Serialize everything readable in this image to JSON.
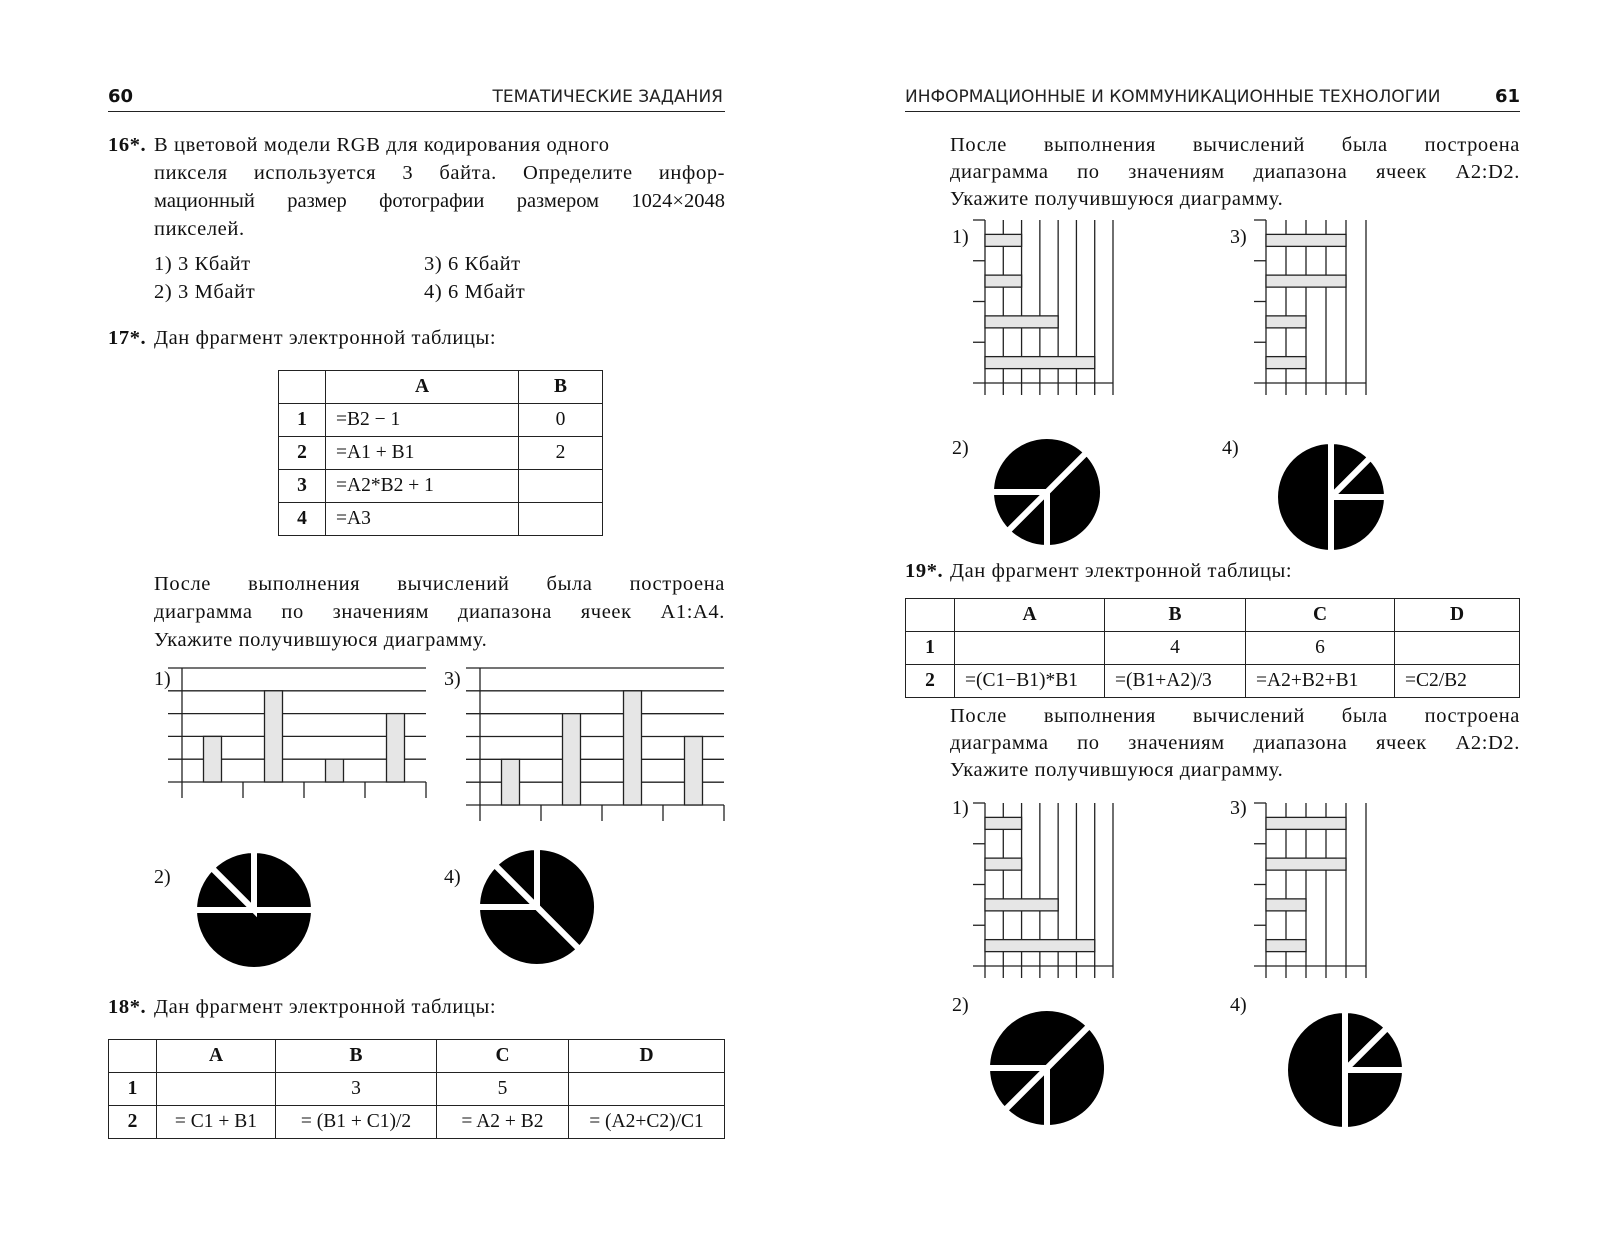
{
  "left_page": {
    "page_number": "60",
    "running_head": "ТЕМАТИЧЕСКИЕ ЗАДАНИЯ",
    "q16": {
      "number": "16*.",
      "lines": [
        "В цветовой модели RGB для кодирования одного",
        "пикселя используется 3 байта. Определите инфор-",
        "мационный размер фотографии размером 1024×2048",
        "пикселей."
      ],
      "options": [
        "1) 3 Кбайт",
        "2) 3 Мбайт",
        "3) 6 Кбайт",
        "4) 6 Мбайт"
      ]
    },
    "q17": {
      "number": "17*.",
      "title": "Дан фрагмент электронной таблицы:",
      "table": {
        "headers": [
          "",
          "A",
          "B"
        ],
        "rows": [
          [
            "1",
            "=B2 − 1",
            "0"
          ],
          [
            "2",
            "=A1 + B1",
            "2"
          ],
          [
            "3",
            "=A2*B2 + 1",
            ""
          ],
          [
            "4",
            "=A3",
            ""
          ]
        ]
      },
      "lines": [
        "После выполнения вычислений была построена",
        "диаграмма по значениям диапазона ячеек A1:A4.",
        "Укажите получившуюся диаграмму."
      ]
    },
    "q18": {
      "number": "18*.",
      "title": "Дан фрагмент электронной таблицы:",
      "table": {
        "headers": [
          "",
          "A",
          "B",
          "C",
          "D"
        ],
        "rows": [
          [
            "1",
            "",
            "3",
            "5",
            ""
          ],
          [
            "2",
            "= C1 + B1",
            "= (B1 + C1)/2",
            "= A2 + B2",
            "= (A2+C2)/C1"
          ]
        ]
      }
    }
  },
  "right_page": {
    "page_number": "61",
    "running_head": "ИНФОРМАЦИОННЫЕ И КОММУНИКАЦИОННЫЕ ТЕХНОЛОГИИ",
    "q18_cont": {
      "lines": [
        "После выполнения вычислений была построена",
        "диаграмма по значениям диапазона ячеек A2:D2.",
        "Укажите получившуюся диаграмму."
      ]
    },
    "q19": {
      "number": "19*.",
      "title": "Дан фрагмент электронной таблицы:",
      "table": {
        "headers": [
          "",
          "A",
          "B",
          "C",
          "D"
        ],
        "rows": [
          [
            "1",
            "",
            "4",
            "6",
            ""
          ],
          [
            "2",
            "=(C1−B1)*B1",
            "=(B1+A2)/3",
            "=A2+B2+B1",
            "=C2/B2"
          ]
        ]
      },
      "lines": [
        "После выполнения вычислений была построена",
        "диаграмма по значениям диапазона ячеек A2:D2.",
        "Укажите получившуюся диаграмму."
      ]
    }
  },
  "chart_data": [
    {
      "question": "17",
      "label": "1)",
      "type": "bar",
      "values": [
        2,
        4,
        1,
        3
      ],
      "ylim": [
        0,
        5
      ],
      "grid": true,
      "bar_color": "#e6e6e6"
    },
    {
      "question": "17",
      "label": "3)",
      "type": "bar",
      "values": [
        2,
        4,
        5,
        3
      ],
      "ylim": [
        0,
        6
      ],
      "grid": true,
      "bar_color": "#e6e6e6"
    },
    {
      "question": "17",
      "label": "2)",
      "type": "pie",
      "values": [
        25,
        50,
        12.5,
        12.5
      ],
      "start_deg": 0,
      "color": "#000000"
    },
    {
      "question": "17",
      "label": "4)",
      "type": "pie",
      "values": [
        37.5,
        37.5,
        12.5,
        12.5
      ],
      "start_deg": 0,
      "color": "#000000"
    },
    {
      "question": "18",
      "label": "1)",
      "type": "hbar",
      "values": [
        2,
        2,
        4,
        6
      ],
      "xlim": [
        0,
        7
      ],
      "grid": true,
      "bar_color": "#e6e6e6"
    },
    {
      "question": "18",
      "label": "3)",
      "type": "hbar",
      "values": [
        4,
        4,
        2,
        2
      ],
      "xlim": [
        0,
        5
      ],
      "grid": true,
      "bar_color": "#e6e6e6"
    },
    {
      "question": "18",
      "label": "2)",
      "type": "pie",
      "values": [
        37.5,
        12.5,
        12.5,
        37.5
      ],
      "start_deg": 45,
      "color": "#000000"
    },
    {
      "question": "18",
      "label": "4)",
      "type": "pie",
      "values": [
        12.5,
        12.5,
        25,
        50
      ],
      "start_deg": 0,
      "color": "#000000"
    },
    {
      "question": "19",
      "label": "1)",
      "type": "hbar",
      "values": [
        2,
        2,
        4,
        6
      ],
      "xlim": [
        0,
        7
      ],
      "grid": true,
      "bar_color": "#e6e6e6"
    },
    {
      "question": "19",
      "label": "3)",
      "type": "hbar",
      "values": [
        4,
        4,
        2,
        2
      ],
      "xlim": [
        0,
        5
      ],
      "grid": true,
      "bar_color": "#e6e6e6"
    },
    {
      "question": "19",
      "label": "2)",
      "type": "pie",
      "values": [
        37.5,
        12.5,
        12.5,
        37.5
      ],
      "start_deg": 45,
      "color": "#000000"
    },
    {
      "question": "19",
      "label": "4)",
      "type": "pie",
      "values": [
        12.5,
        12.5,
        25,
        50
      ],
      "start_deg": 0,
      "color": "#000000"
    }
  ]
}
